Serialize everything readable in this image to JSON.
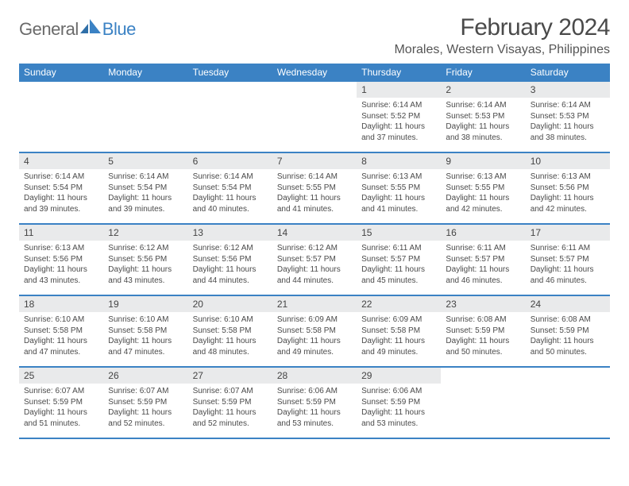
{
  "brand": {
    "text1": "General",
    "text2": "Blue"
  },
  "title": "February 2024",
  "location": "Morales, Western Visayas, Philippines",
  "colors": {
    "header_bg": "#3b82c4",
    "daynum_bg": "#e9eaeb",
    "text": "#4a4a4a",
    "brand_gray": "#6a6a6a",
    "brand_blue": "#3b82c4"
  },
  "dow": [
    "Sunday",
    "Monday",
    "Tuesday",
    "Wednesday",
    "Thursday",
    "Friday",
    "Saturday"
  ],
  "weeks": [
    [
      {
        "n": "",
        "sr": "",
        "ss": "",
        "dl": ""
      },
      {
        "n": "",
        "sr": "",
        "ss": "",
        "dl": ""
      },
      {
        "n": "",
        "sr": "",
        "ss": "",
        "dl": ""
      },
      {
        "n": "",
        "sr": "",
        "ss": "",
        "dl": ""
      },
      {
        "n": "1",
        "sr": "Sunrise: 6:14 AM",
        "ss": "Sunset: 5:52 PM",
        "dl": "Daylight: 11 hours and 37 minutes."
      },
      {
        "n": "2",
        "sr": "Sunrise: 6:14 AM",
        "ss": "Sunset: 5:53 PM",
        "dl": "Daylight: 11 hours and 38 minutes."
      },
      {
        "n": "3",
        "sr": "Sunrise: 6:14 AM",
        "ss": "Sunset: 5:53 PM",
        "dl": "Daylight: 11 hours and 38 minutes."
      }
    ],
    [
      {
        "n": "4",
        "sr": "Sunrise: 6:14 AM",
        "ss": "Sunset: 5:54 PM",
        "dl": "Daylight: 11 hours and 39 minutes."
      },
      {
        "n": "5",
        "sr": "Sunrise: 6:14 AM",
        "ss": "Sunset: 5:54 PM",
        "dl": "Daylight: 11 hours and 39 minutes."
      },
      {
        "n": "6",
        "sr": "Sunrise: 6:14 AM",
        "ss": "Sunset: 5:54 PM",
        "dl": "Daylight: 11 hours and 40 minutes."
      },
      {
        "n": "7",
        "sr": "Sunrise: 6:14 AM",
        "ss": "Sunset: 5:55 PM",
        "dl": "Daylight: 11 hours and 41 minutes."
      },
      {
        "n": "8",
        "sr": "Sunrise: 6:13 AM",
        "ss": "Sunset: 5:55 PM",
        "dl": "Daylight: 11 hours and 41 minutes."
      },
      {
        "n": "9",
        "sr": "Sunrise: 6:13 AM",
        "ss": "Sunset: 5:55 PM",
        "dl": "Daylight: 11 hours and 42 minutes."
      },
      {
        "n": "10",
        "sr": "Sunrise: 6:13 AM",
        "ss": "Sunset: 5:56 PM",
        "dl": "Daylight: 11 hours and 42 minutes."
      }
    ],
    [
      {
        "n": "11",
        "sr": "Sunrise: 6:13 AM",
        "ss": "Sunset: 5:56 PM",
        "dl": "Daylight: 11 hours and 43 minutes."
      },
      {
        "n": "12",
        "sr": "Sunrise: 6:12 AM",
        "ss": "Sunset: 5:56 PM",
        "dl": "Daylight: 11 hours and 43 minutes."
      },
      {
        "n": "13",
        "sr": "Sunrise: 6:12 AM",
        "ss": "Sunset: 5:56 PM",
        "dl": "Daylight: 11 hours and 44 minutes."
      },
      {
        "n": "14",
        "sr": "Sunrise: 6:12 AM",
        "ss": "Sunset: 5:57 PM",
        "dl": "Daylight: 11 hours and 44 minutes."
      },
      {
        "n": "15",
        "sr": "Sunrise: 6:11 AM",
        "ss": "Sunset: 5:57 PM",
        "dl": "Daylight: 11 hours and 45 minutes."
      },
      {
        "n": "16",
        "sr": "Sunrise: 6:11 AM",
        "ss": "Sunset: 5:57 PM",
        "dl": "Daylight: 11 hours and 46 minutes."
      },
      {
        "n": "17",
        "sr": "Sunrise: 6:11 AM",
        "ss": "Sunset: 5:57 PM",
        "dl": "Daylight: 11 hours and 46 minutes."
      }
    ],
    [
      {
        "n": "18",
        "sr": "Sunrise: 6:10 AM",
        "ss": "Sunset: 5:58 PM",
        "dl": "Daylight: 11 hours and 47 minutes."
      },
      {
        "n": "19",
        "sr": "Sunrise: 6:10 AM",
        "ss": "Sunset: 5:58 PM",
        "dl": "Daylight: 11 hours and 47 minutes."
      },
      {
        "n": "20",
        "sr": "Sunrise: 6:10 AM",
        "ss": "Sunset: 5:58 PM",
        "dl": "Daylight: 11 hours and 48 minutes."
      },
      {
        "n": "21",
        "sr": "Sunrise: 6:09 AM",
        "ss": "Sunset: 5:58 PM",
        "dl": "Daylight: 11 hours and 49 minutes."
      },
      {
        "n": "22",
        "sr": "Sunrise: 6:09 AM",
        "ss": "Sunset: 5:58 PM",
        "dl": "Daylight: 11 hours and 49 minutes."
      },
      {
        "n": "23",
        "sr": "Sunrise: 6:08 AM",
        "ss": "Sunset: 5:59 PM",
        "dl": "Daylight: 11 hours and 50 minutes."
      },
      {
        "n": "24",
        "sr": "Sunrise: 6:08 AM",
        "ss": "Sunset: 5:59 PM",
        "dl": "Daylight: 11 hours and 50 minutes."
      }
    ],
    [
      {
        "n": "25",
        "sr": "Sunrise: 6:07 AM",
        "ss": "Sunset: 5:59 PM",
        "dl": "Daylight: 11 hours and 51 minutes."
      },
      {
        "n": "26",
        "sr": "Sunrise: 6:07 AM",
        "ss": "Sunset: 5:59 PM",
        "dl": "Daylight: 11 hours and 52 minutes."
      },
      {
        "n": "27",
        "sr": "Sunrise: 6:07 AM",
        "ss": "Sunset: 5:59 PM",
        "dl": "Daylight: 11 hours and 52 minutes."
      },
      {
        "n": "28",
        "sr": "Sunrise: 6:06 AM",
        "ss": "Sunset: 5:59 PM",
        "dl": "Daylight: 11 hours and 53 minutes."
      },
      {
        "n": "29",
        "sr": "Sunrise: 6:06 AM",
        "ss": "Sunset: 5:59 PM",
        "dl": "Daylight: 11 hours and 53 minutes."
      },
      {
        "n": "",
        "sr": "",
        "ss": "",
        "dl": "",
        "trailing": true
      },
      {
        "n": "",
        "sr": "",
        "ss": "",
        "dl": "",
        "trailing": true
      }
    ]
  ]
}
